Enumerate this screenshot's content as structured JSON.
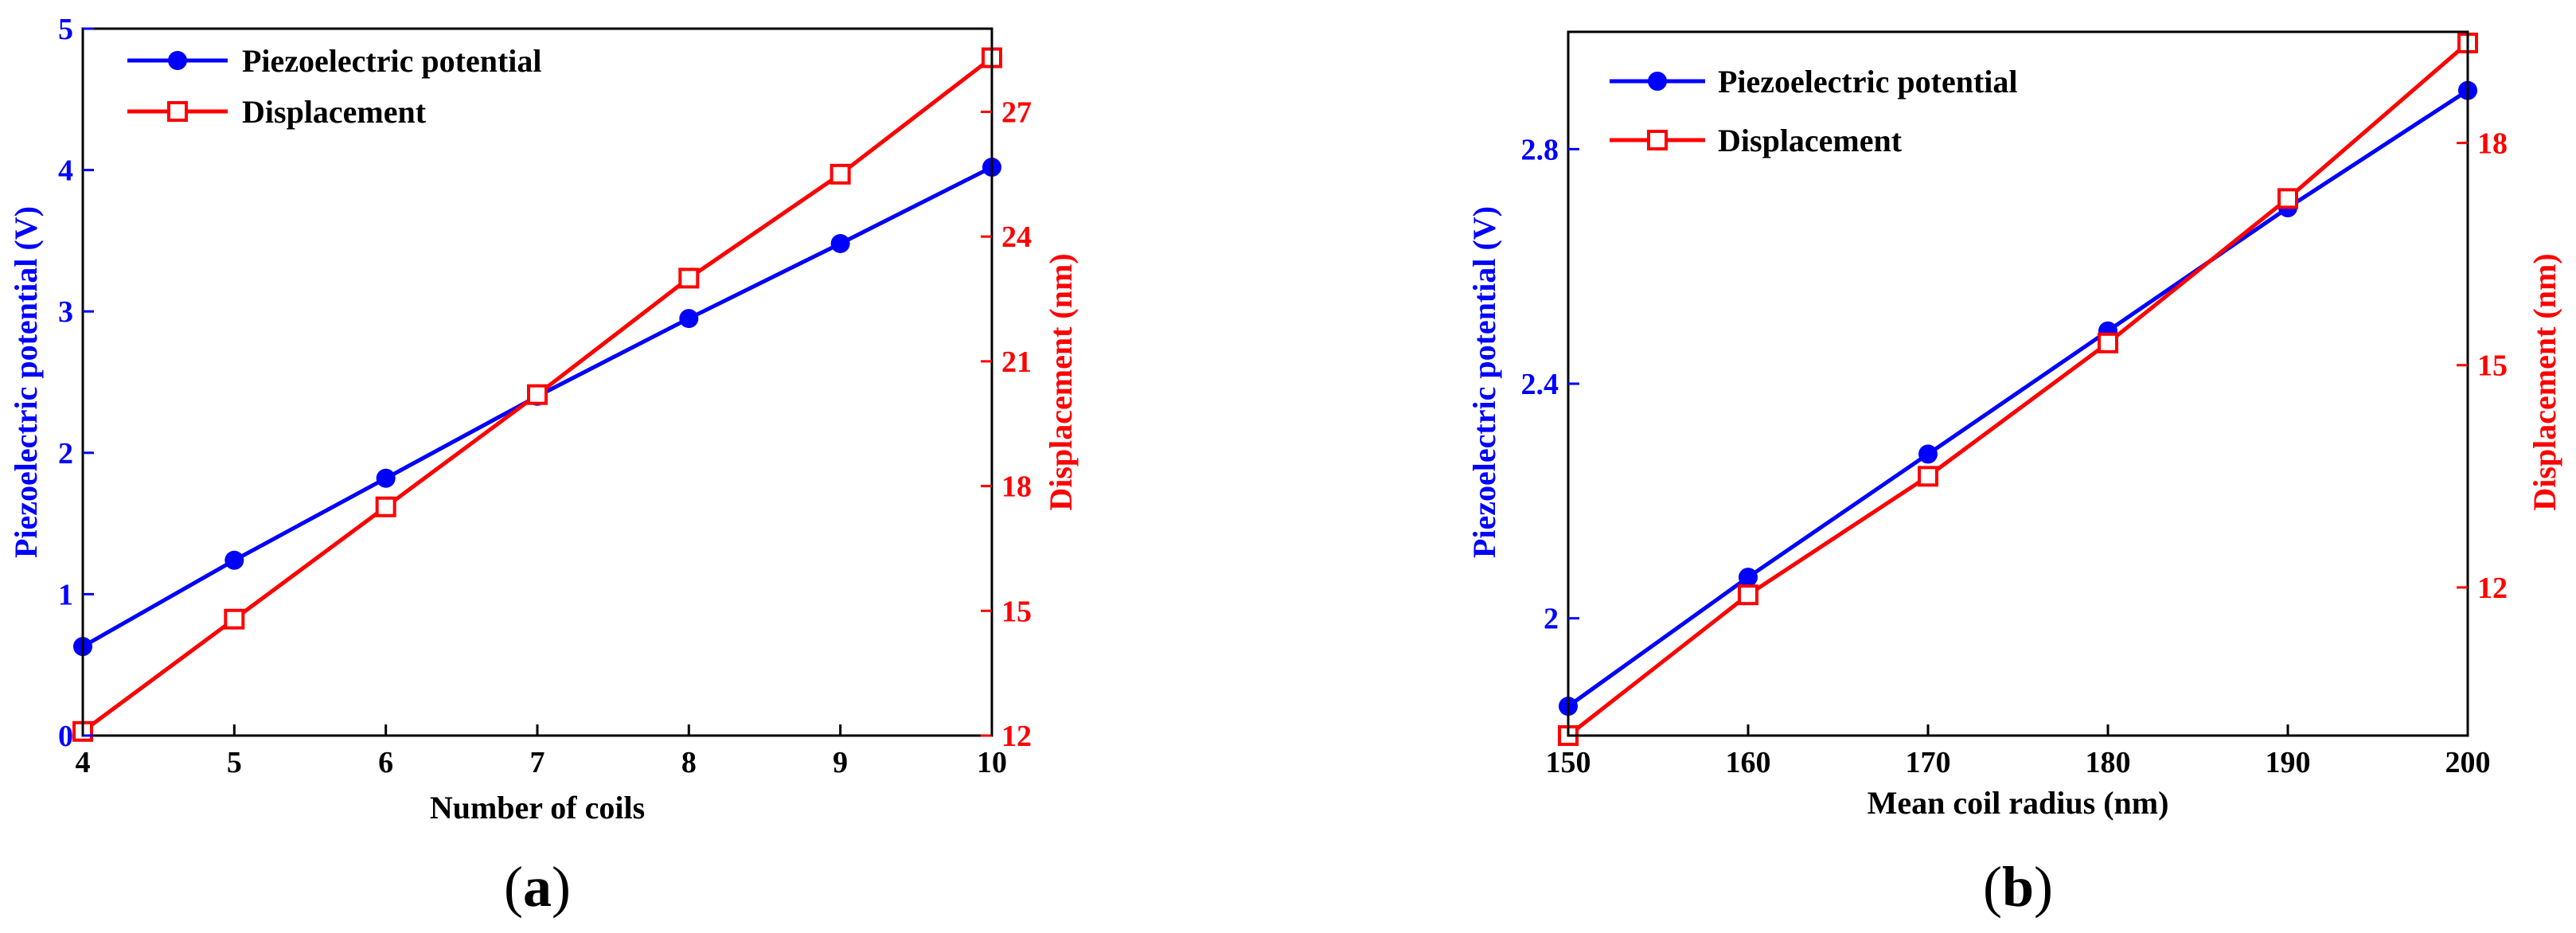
{
  "colors": {
    "potential": "#0000ff",
    "displacement": "#ff0000",
    "axis": "#000000"
  },
  "chart_data": [
    {
      "type": "line",
      "panel_label": "a",
      "title": "",
      "xlabel": "Number of coils",
      "ylabel": "Piezoelectric potential (V)",
      "y2label": "Displacement (nm)",
      "xlim": [
        4,
        10
      ],
      "ylim": [
        0,
        5
      ],
      "y2lim": [
        12,
        29
      ],
      "xticks": [
        4,
        5,
        6,
        7,
        8,
        9,
        10
      ],
      "yticks": [
        0,
        1,
        2,
        3,
        4,
        5
      ],
      "y2ticks": [
        12,
        15,
        18,
        21,
        24,
        27
      ],
      "grid": false,
      "legend_position": "top-left",
      "series": [
        {
          "name": "Piezoelectric potential",
          "axis": "left",
          "marker": "circle",
          "color": "#0000ff",
          "x": [
            4,
            5,
            6,
            7,
            8,
            9,
            10
          ],
          "y": [
            0.63,
            1.24,
            1.82,
            2.4,
            2.95,
            3.48,
            4.02
          ]
        },
        {
          "name": "Displacement",
          "axis": "right",
          "marker": "square",
          "color": "#ff0000",
          "x": [
            4,
            5,
            6,
            7,
            8,
            9,
            10
          ],
          "y": [
            12.1,
            14.8,
            17.5,
            20.2,
            23.0,
            25.5,
            28.3
          ]
        }
      ]
    },
    {
      "type": "line",
      "panel_label": "b",
      "title": "",
      "xlabel": "Mean coil radius (nm)",
      "ylabel": "Piezoelectric potential (V)",
      "y2label": "Displacement (nm)",
      "xlim": [
        150,
        200
      ],
      "ylim": [
        1.8,
        3.0
      ],
      "y2lim": [
        10.0,
        19.5
      ],
      "xticks": [
        150,
        160,
        170,
        180,
        190,
        200
      ],
      "yticks": [
        2.0,
        2.4,
        2.8
      ],
      "ytick_labels": [
        "2",
        "2.4",
        "2.8"
      ],
      "y2ticks": [
        12,
        15,
        18
      ],
      "grid": false,
      "legend_position": "top-left",
      "series": [
        {
          "name": "Piezoelectric potential",
          "axis": "left",
          "marker": "circle",
          "color": "#0000ff",
          "x": [
            150,
            160,
            170,
            180,
            190,
            200
          ],
          "y": [
            1.85,
            2.07,
            2.28,
            2.49,
            2.7,
            2.9
          ]
        },
        {
          "name": "Displacement",
          "axis": "right",
          "marker": "square",
          "color": "#ff0000",
          "x": [
            150,
            160,
            170,
            180,
            190,
            200
          ],
          "y": [
            10.0,
            11.9,
            13.5,
            15.3,
            17.25,
            19.35
          ]
        }
      ]
    }
  ]
}
